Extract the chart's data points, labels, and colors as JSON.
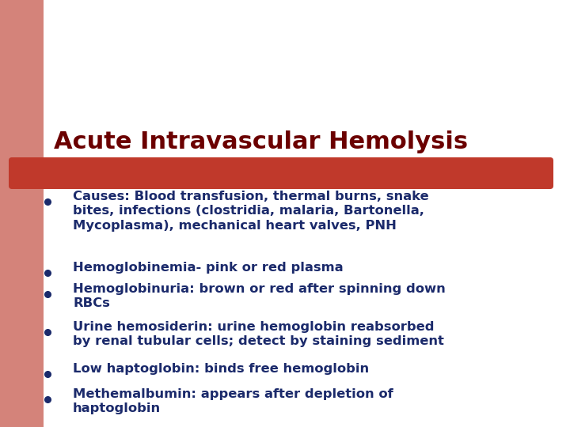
{
  "title": "Acute Intravascular Hemolysis",
  "title_color": "#6B0000",
  "title_fontsize": 22,
  "bar_color": "#C0392B",
  "background_color": "#FFFFFF",
  "left_bar_color": "#D4837A",
  "top_rect_color": "#D4837A",
  "bullet_color": "#1B2A6B",
  "bullet_fontsize": 11.8,
  "bullets": [
    "Causes: Blood transfusion, thermal burns, snake\nbites, infections (clostridia, malaria, Bartonella,\nMycoplasma), mechanical heart valves, PNH",
    "Hemoglobinemia- pink or red plasma",
    "Hemoglobinuria: brown or red after spinning down\nRBCs",
    "Urine hemosiderin: urine hemoglobin reabsorbed\nby renal tubular cells; detect by staining sediment",
    "Low haptoglobin: binds free hemoglobin",
    "Methemalbumin: appears after depletion of\nhaptoglobin"
  ]
}
